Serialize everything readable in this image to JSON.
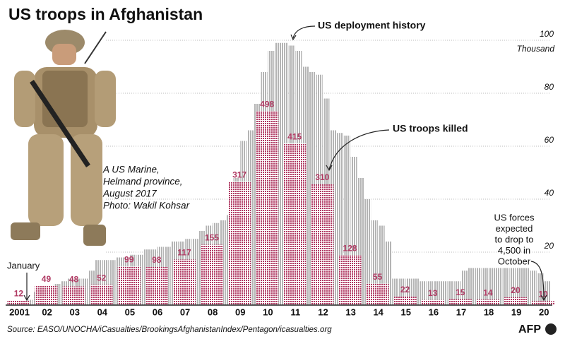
{
  "chart_data": {
    "type": "bar",
    "title": "US troops in Afghanistan",
    "y_label": "Thousand",
    "ylim": [
      0,
      100
    ],
    "yticks": [
      20,
      40,
      60,
      80,
      100
    ],
    "y2lim": [
      0,
      680
    ],
    "xlim": [
      2001,
      2020.75
    ],
    "grid": true,
    "xticks": [
      {
        "value": 2001.5,
        "label": "2001"
      },
      {
        "value": 2002.5,
        "label": "02"
      },
      {
        "value": 2003.5,
        "label": "03"
      },
      {
        "value": 2004.5,
        "label": "04"
      },
      {
        "value": 2005.5,
        "label": "05"
      },
      {
        "value": 2006.5,
        "label": "06"
      },
      {
        "value": 2007.5,
        "label": "07"
      },
      {
        "value": 2008.5,
        "label": "08"
      },
      {
        "value": 2009.5,
        "label": "09"
      },
      {
        "value": 2010.5,
        "label": "10"
      },
      {
        "value": 2011.5,
        "label": "11"
      },
      {
        "value": 2012.5,
        "label": "12"
      },
      {
        "value": 2013.5,
        "label": "13"
      },
      {
        "value": 2014.5,
        "label": "14"
      },
      {
        "value": 2015.5,
        "label": "15"
      },
      {
        "value": 2016.5,
        "label": "16"
      },
      {
        "value": 2017.5,
        "label": "17"
      },
      {
        "value": 2018.5,
        "label": "18"
      },
      {
        "value": 2019.5,
        "label": "19"
      },
      {
        "value": 2020.5,
        "label": "20"
      }
    ],
    "series": [
      {
        "name": "US deployment history",
        "color": "#b4b4b4",
        "x": [
          2001.75,
          2002,
          2002.25,
          2002.5,
          2002.75,
          2003,
          2003.25,
          2003.5,
          2003.75,
          2004,
          2004.25,
          2004.5,
          2004.75,
          2005,
          2005.25,
          2005.5,
          2005.75,
          2006,
          2006.25,
          2006.5,
          2006.75,
          2007,
          2007.25,
          2007.5,
          2007.75,
          2008,
          2008.25,
          2008.5,
          2008.75,
          2009,
          2009.25,
          2009.5,
          2009.75,
          2010,
          2010.25,
          2010.5,
          2010.75,
          2011,
          2011.25,
          2011.5,
          2011.75,
          2012,
          2012.25,
          2012.5,
          2012.75,
          2013,
          2013.25,
          2013.5,
          2013.75,
          2014,
          2014.25,
          2014.5,
          2014.75,
          2015,
          2015.25,
          2015.5,
          2015.75,
          2016,
          2016.25,
          2016.5,
          2016.75,
          2017,
          2017.25,
          2017.5,
          2017.75,
          2018,
          2018.25,
          2018.5,
          2018.75,
          2019,
          2019.25,
          2019.5,
          2019.75,
          2020,
          2020.25,
          2020.5
        ],
        "values": [
          2,
          5,
          6,
          7,
          8,
          9,
          10,
          10,
          10,
          13,
          17,
          17,
          17,
          18,
          18,
          19,
          19,
          21,
          21,
          22,
          22,
          24,
          24,
          25,
          25,
          28,
          30,
          31,
          32,
          34,
          48,
          62,
          66,
          76,
          88,
          96,
          99,
          99,
          98,
          96,
          90,
          88,
          87,
          78,
          66,
          65,
          64,
          56,
          48,
          40,
          32,
          30,
          24,
          10,
          10,
          10,
          10,
          9,
          9,
          9,
          9,
          9,
          9,
          13,
          14,
          14,
          14,
          14,
          14,
          14,
          14,
          14,
          14,
          13,
          12,
          9
        ]
      },
      {
        "name": "US troops killed",
        "color": "#b03a63",
        "axis": "y2",
        "x": [
          2001,
          2002,
          2003,
          2004,
          2005,
          2006,
          2007,
          2008,
          2009,
          2010,
          2011,
          2012,
          2013,
          2014,
          2015,
          2016,
          2017,
          2018,
          2019,
          2020
        ],
        "values": [
          12,
          49,
          48,
          52,
          99,
          98,
          117,
          155,
          317,
          498,
          415,
          310,
          128,
          55,
          22,
          13,
          15,
          14,
          20,
          10
        ]
      }
    ],
    "annotations": {
      "january": "January",
      "forecast": [
        "US forces",
        "expected",
        "to drop to",
        "4,500 in",
        "October"
      ],
      "caption": [
        "A US Marine,",
        "Helmand province,",
        "August 2017",
        "Photo: Wakil Kohsar"
      ]
    },
    "source": "Source: EASO/UNOCHA/iCasualties/BrookingsAfghanistanIndex/Pentagon/icasualties.org",
    "credit": "AFP"
  }
}
